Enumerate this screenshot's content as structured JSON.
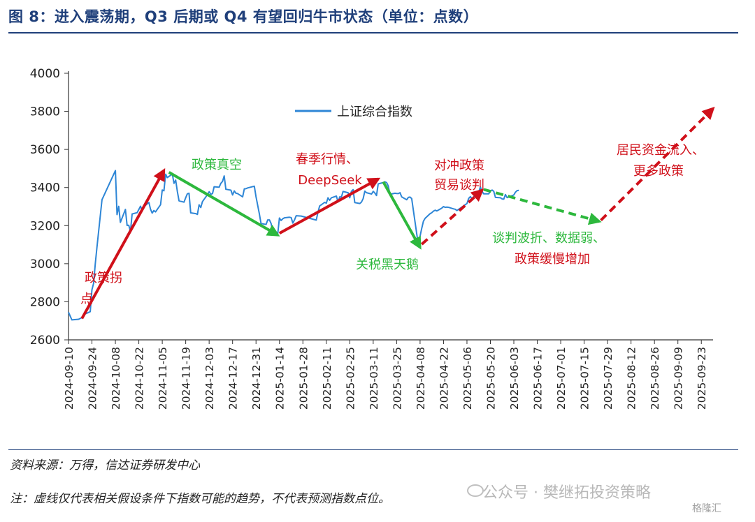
{
  "title": "图 8：进入震荡期，Q3 后期或 Q4 有望回归牛市状态（单位：点数）",
  "footer": {
    "source": "资料来源：万得，信达证券研发中心",
    "note": "注：虚线仅代表相关假设条件下指数可能的趋势，不代表预测指数点位。",
    "watermark": "公众号 · 樊继拓投资策略",
    "watermark_logo": "格隆汇"
  },
  "colors": {
    "title": "#1f3f7a",
    "series": "#2e86d6",
    "red": "#d0101a",
    "green": "#2db83d"
  },
  "chart_data": {
    "type": "line",
    "title": "",
    "xlabel": "",
    "ylabel": "",
    "ylim": [
      2600,
      4000
    ],
    "yticks": [
      2600,
      2800,
      3000,
      3200,
      3400,
      3600,
      3800,
      4000
    ],
    "xlim": [
      "2024-09-10",
      "2025-09-30"
    ],
    "xticks": [
      "2024-09-10",
      "2024-09-24",
      "2024-10-08",
      "2024-10-22",
      "2024-11-05",
      "2024-11-19",
      "2024-12-03",
      "2024-12-17",
      "2024-12-31",
      "2025-01-14",
      "2025-01-28",
      "2025-02-11",
      "2025-02-25",
      "2025-03-11",
      "2025-03-25",
      "2025-04-08",
      "2025-04-22",
      "2025-05-06",
      "2025-05-20",
      "2025-06-03",
      "2025-06-17",
      "2025-07-01",
      "2025-07-15",
      "2025-07-29",
      "2025-08-12",
      "2025-08-26",
      "2025-09-09",
      "2025-09-23"
    ],
    "legend": {
      "position": "top-left",
      "entries": [
        "上证综合指数"
      ]
    },
    "series": [
      {
        "name": "上证综合指数",
        "color": "#2e86d6",
        "points": [
          [
            "2024-09-10",
            2745
          ],
          [
            "2024-09-12",
            2705
          ],
          [
            "2024-09-16",
            2708
          ],
          [
            "2024-09-18",
            2717
          ],
          [
            "2024-09-20",
            2736
          ],
          [
            "2024-09-23",
            2748
          ],
          [
            "2024-09-24",
            2863
          ],
          [
            "2024-09-25",
            2897
          ],
          [
            "2024-09-26",
            3000
          ],
          [
            "2024-09-27",
            3087
          ],
          [
            "2024-09-30",
            3336
          ],
          [
            "2024-10-08",
            3489
          ],
          [
            "2024-10-09",
            3258
          ],
          [
            "2024-10-10",
            3301
          ],
          [
            "2024-10-11",
            3217
          ],
          [
            "2024-10-14",
            3285
          ],
          [
            "2024-10-15",
            3201
          ],
          [
            "2024-10-16",
            3202
          ],
          [
            "2024-10-17",
            3169
          ],
          [
            "2024-10-18",
            3261
          ],
          [
            "2024-10-21",
            3268
          ],
          [
            "2024-10-22",
            3285
          ],
          [
            "2024-10-23",
            3302
          ],
          [
            "2024-10-24",
            3280
          ],
          [
            "2024-10-25",
            3299
          ],
          [
            "2024-10-28",
            3322
          ],
          [
            "2024-10-29",
            3286
          ],
          [
            "2024-10-30",
            3266
          ],
          [
            "2024-10-31",
            3279
          ],
          [
            "2024-11-01",
            3272
          ],
          [
            "2024-11-04",
            3310
          ],
          [
            "2024-11-05",
            3387
          ],
          [
            "2024-11-06",
            3383
          ],
          [
            "2024-11-07",
            3470
          ],
          [
            "2024-11-08",
            3452
          ],
          [
            "2024-11-11",
            3470
          ],
          [
            "2024-11-12",
            3422
          ],
          [
            "2024-11-13",
            3439
          ],
          [
            "2024-11-14",
            3379
          ],
          [
            "2024-11-15",
            3330
          ],
          [
            "2024-11-18",
            3323
          ],
          [
            "2024-11-19",
            3346
          ],
          [
            "2024-11-20",
            3367
          ],
          [
            "2024-11-21",
            3370
          ],
          [
            "2024-11-22",
            3267
          ],
          [
            "2024-11-25",
            3263
          ],
          [
            "2024-11-26",
            3259
          ],
          [
            "2024-11-27",
            3309
          ],
          [
            "2024-11-28",
            3295
          ],
          [
            "2024-11-29",
            3326
          ],
          [
            "2024-12-02",
            3363
          ],
          [
            "2024-12-03",
            3378
          ],
          [
            "2024-12-04",
            3364
          ],
          [
            "2024-12-05",
            3368
          ],
          [
            "2024-12-06",
            3404
          ],
          [
            "2024-12-09",
            3402
          ],
          [
            "2024-12-10",
            3422
          ],
          [
            "2024-12-11",
            3432
          ],
          [
            "2024-12-12",
            3461
          ],
          [
            "2024-12-13",
            3391
          ],
          [
            "2024-12-16",
            3386
          ],
          [
            "2024-12-17",
            3361
          ],
          [
            "2024-12-18",
            3382
          ],
          [
            "2024-12-19",
            3370
          ],
          [
            "2024-12-20",
            3368
          ],
          [
            "2024-12-23",
            3351
          ],
          [
            "2024-12-24",
            3393
          ],
          [
            "2024-12-25",
            3394
          ],
          [
            "2024-12-26",
            3398
          ],
          [
            "2024-12-27",
            3400
          ],
          [
            "2024-12-30",
            3407
          ],
          [
            "2024-12-31",
            3352
          ],
          [
            "2025-01-02",
            3262
          ],
          [
            "2025-01-03",
            3211
          ],
          [
            "2025-01-06",
            3206
          ],
          [
            "2025-01-07",
            3230
          ],
          [
            "2025-01-08",
            3230
          ],
          [
            "2025-01-09",
            3211
          ],
          [
            "2025-01-10",
            3168
          ],
          [
            "2025-01-13",
            3160
          ],
          [
            "2025-01-14",
            3240
          ],
          [
            "2025-01-15",
            3227
          ],
          [
            "2025-01-16",
            3236
          ],
          [
            "2025-01-17",
            3241
          ],
          [
            "2025-01-20",
            3244
          ],
          [
            "2025-01-21",
            3242
          ],
          [
            "2025-01-22",
            3213
          ],
          [
            "2025-01-23",
            3230
          ],
          [
            "2025-01-24",
            3252
          ],
          [
            "2025-01-27",
            3250
          ],
          [
            "2025-02-05",
            3229
          ],
          [
            "2025-02-06",
            3270
          ],
          [
            "2025-02-07",
            3303
          ],
          [
            "2025-02-10",
            3322
          ],
          [
            "2025-02-11",
            3318
          ],
          [
            "2025-02-12",
            3346
          ],
          [
            "2025-02-13",
            3333
          ],
          [
            "2025-02-14",
            3346
          ],
          [
            "2025-02-17",
            3355
          ],
          [
            "2025-02-18",
            3324
          ],
          [
            "2025-02-19",
            3351
          ],
          [
            "2025-02-20",
            3350
          ],
          [
            "2025-02-21",
            3379
          ],
          [
            "2025-02-24",
            3373
          ],
          [
            "2025-02-25",
            3346
          ],
          [
            "2025-02-26",
            3380
          ],
          [
            "2025-02-27",
            3389
          ],
          [
            "2025-02-28",
            3321
          ],
          [
            "2025-03-03",
            3316
          ],
          [
            "2025-03-04",
            3324
          ],
          [
            "2025-03-05",
            3342
          ],
          [
            "2025-03-06",
            3381
          ],
          [
            "2025-03-07",
            3373
          ],
          [
            "2025-03-10",
            3366
          ],
          [
            "2025-03-11",
            3380
          ],
          [
            "2025-03-12",
            3371
          ],
          [
            "2025-03-13",
            3358
          ],
          [
            "2025-03-14",
            3419
          ],
          [
            "2025-03-17",
            3426
          ],
          [
            "2025-03-18",
            3430
          ],
          [
            "2025-03-19",
            3426
          ],
          [
            "2025-03-20",
            3408
          ],
          [
            "2025-03-21",
            3364
          ],
          [
            "2025-03-24",
            3370
          ],
          [
            "2025-03-25",
            3369
          ],
          [
            "2025-03-26",
            3368
          ],
          [
            "2025-03-27",
            3373
          ],
          [
            "2025-03-28",
            3351
          ],
          [
            "2025-03-31",
            3336
          ],
          [
            "2025-04-01",
            3348
          ],
          [
            "2025-04-02",
            3350
          ],
          [
            "2025-04-03",
            3342
          ],
          [
            "2025-04-07",
            3096
          ],
          [
            "2025-04-08",
            3145
          ],
          [
            "2025-04-09",
            3186
          ],
          [
            "2025-04-10",
            3223
          ],
          [
            "2025-04-11",
            3238
          ],
          [
            "2025-04-14",
            3263
          ],
          [
            "2025-04-15",
            3268
          ],
          [
            "2025-04-16",
            3276
          ],
          [
            "2025-04-17",
            3281
          ],
          [
            "2025-04-18",
            3277
          ],
          [
            "2025-04-21",
            3292
          ],
          [
            "2025-04-22",
            3300
          ],
          [
            "2025-04-23",
            3296
          ],
          [
            "2025-04-24",
            3297
          ],
          [
            "2025-04-25",
            3296
          ],
          [
            "2025-04-28",
            3288
          ],
          [
            "2025-04-29",
            3286
          ],
          [
            "2025-04-30",
            3279
          ],
          [
            "2025-05-06",
            3316
          ],
          [
            "2025-05-07",
            3343
          ],
          [
            "2025-05-08",
            3352
          ],
          [
            "2025-05-09",
            3342
          ],
          [
            "2025-05-12",
            3369
          ],
          [
            "2025-05-13",
            3374
          ],
          [
            "2025-05-14",
            3403
          ],
          [
            "2025-05-15",
            3380
          ],
          [
            "2025-05-16",
            3367
          ],
          [
            "2025-05-19",
            3367
          ],
          [
            "2025-05-20",
            3381
          ],
          [
            "2025-05-21",
            3387
          ],
          [
            "2025-05-22",
            3380
          ],
          [
            "2025-05-23",
            3348
          ],
          [
            "2025-05-26",
            3346
          ],
          [
            "2025-05-27",
            3340
          ],
          [
            "2025-05-28",
            3339
          ],
          [
            "2025-05-29",
            3363
          ],
          [
            "2025-05-30",
            3347
          ],
          [
            "2025-06-03",
            3361
          ],
          [
            "2025-06-04",
            3376
          ],
          [
            "2025-06-05",
            3384
          ],
          [
            "2025-06-06",
            3385
          ]
        ]
      }
    ],
    "arrows": [
      {
        "label": "政策拐点",
        "style": "solid",
        "color": "red",
        "from": [
          "2024-09-18",
          2712
        ],
        "to": [
          "2024-11-06",
          3490
        ]
      },
      {
        "label": "政策真空",
        "style": "solid",
        "color": "green",
        "from": [
          "2024-11-09",
          3480
        ],
        "to": [
          "2025-01-13",
          3150
        ]
      },
      {
        "label": "春季行情、DeepSeek",
        "style": "solid",
        "color": "red",
        "from": [
          "2025-01-14",
          3160
        ],
        "to": [
          "2025-03-14",
          3445
        ]
      },
      {
        "label": "关税黑天鹅",
        "style": "solid",
        "color": "green",
        "from": [
          "2025-03-17",
          3430
        ],
        "to": [
          "2025-04-08",
          3085
        ]
      },
      {
        "label": "对冲政策 贸易谈判",
        "style": "dashed",
        "color": "red",
        "from": [
          "2025-04-09",
          3102
        ],
        "to": [
          "2025-05-15",
          3385
        ]
      },
      {
        "label": "谈判波折、数据弱、政策缓慢增加",
        "style": "dashed",
        "color": "green",
        "from": [
          "2025-05-16",
          3390
        ],
        "to": [
          "2025-07-24",
          3222
        ]
      },
      {
        "label": "居民资金流入、更多政策",
        "style": "dashed",
        "color": "red",
        "from": [
          "2025-07-25",
          3228
        ],
        "to": [
          "2025-09-30",
          3815
        ]
      }
    ]
  }
}
